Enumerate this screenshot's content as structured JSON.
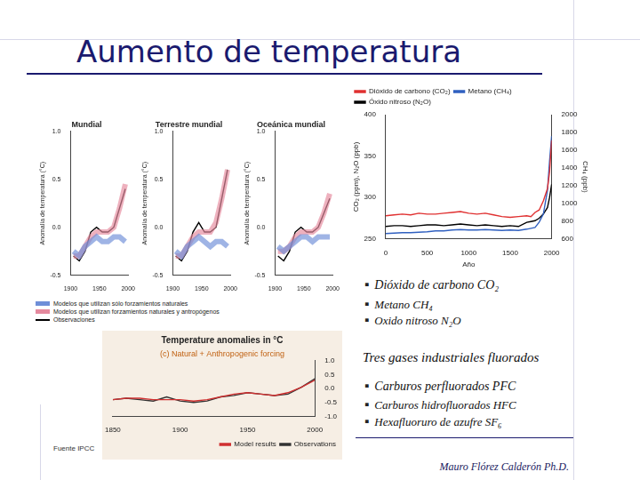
{
  "slide": {
    "title": "Aumento de temperatura",
    "gases": [
      "Dióxido de carbono CO₂",
      "Metano CH₄",
      "Oxido nitroso N₂O"
    ],
    "subheading": "Tres gases industriales fluorados",
    "fluorinated": [
      "Carburos perfluorados PFC",
      "Carburos hidrofluorados HFC",
      "Hexafluoruro de azufre SF₆"
    ],
    "source": "Fuente IPCC",
    "author": "Mauro Flórez Calderón Ph.D."
  },
  "chart_data": [
    {
      "type": "line",
      "x_label": "Año",
      "y_label": "CO₂ (ppm), N₂O (ppb)",
      "y2_label": "CH₄ (ppb)",
      "x": [
        0,
        100,
        200,
        300,
        400,
        500,
        600,
        700,
        800,
        900,
        1000,
        1100,
        1200,
        1300,
        1400,
        1500,
        1600,
        1700,
        1750,
        1800,
        1850,
        1900,
        1950,
        1975,
        2000
      ],
      "xlim": [
        0,
        2000
      ],
      "xticks": [
        0,
        500,
        1000,
        1500,
        2000
      ],
      "ylim": [
        250,
        400
      ],
      "yticks": [
        250,
        300,
        350,
        400
      ],
      "y2lim": [
        600,
        2000
      ],
      "y2ticks": [
        600,
        800,
        1000,
        1200,
        1400,
        1600,
        1800,
        2000
      ],
      "grid": false,
      "legend": "upper left",
      "series": [
        {
          "name": "Dióxido de carbono (CO₂)",
          "color": "#e03030",
          "values": [
            278,
            279,
            280,
            279,
            281,
            280,
            280,
            281,
            282,
            283,
            281,
            280,
            281,
            279,
            277,
            276,
            277,
            278,
            277,
            282,
            285,
            296,
            311,
            331,
            369
          ]
        },
        {
          "name": "Metano (CH₄)",
          "color": "#3060c0",
          "axis": "y2",
          "values": [
            660,
            665,
            670,
            670,
            675,
            680,
            690,
            690,
            700,
            705,
            700,
            700,
            705,
            700,
            695,
            700,
            695,
            710,
            720,
            730,
            790,
            880,
            1150,
            1480,
            1760
          ]
        },
        {
          "name": "Óxido nitroso (N₂O)",
          "color": "#000000",
          "values": [
            265,
            266,
            266,
            265,
            266,
            267,
            267,
            266,
            267,
            268,
            267,
            266,
            267,
            266,
            265,
            266,
            265,
            270,
            271,
            272,
            275,
            280,
            288,
            300,
            316
          ]
        }
      ]
    },
    {
      "type": "line",
      "title": "Mundial",
      "y_label": "Anomalía de temperatura (°C)",
      "x": [
        1905,
        1915,
        1925,
        1935,
        1945,
        1955,
        1965,
        1975,
        1985,
        1995
      ],
      "xlim": [
        1900,
        2000
      ],
      "xticks": [
        1900,
        1950,
        2000
      ],
      "ylim": [
        -0.5,
        1.0
      ],
      "yticks": [
        -0.5,
        {
          "value": 0,
          "label": "0.0"
        },
        0.5,
        {
          "value": 1,
          "label": "1.0"
        }
      ],
      "grid": false,
      "series": [
        {
          "name": "Modelos que utilizan sólo forzamientos naturales",
          "color": "#6f8fd8",
          "values": [
            -0.25,
            -0.3,
            -0.2,
            -0.15,
            -0.1,
            -0.15,
            -0.15,
            -0.1,
            -0.1,
            -0.15
          ]
        },
        {
          "name": "Modelos que utilizan forzamientos naturales y antropógenos",
          "color": "#e58a9e",
          "values": [
            -0.3,
            -0.3,
            -0.2,
            -0.1,
            -0.05,
            -0.05,
            -0.05,
            0.0,
            0.2,
            0.45
          ]
        },
        {
          "name": "Observaciones",
          "color": "#000000",
          "values": [
            -0.3,
            -0.35,
            -0.25,
            -0.05,
            0.0,
            -0.05,
            -0.05,
            0.0,
            0.2,
            0.4
          ]
        }
      ]
    },
    {
      "type": "line",
      "title": "Terrestre mundial",
      "y_label": "Anomalía de temperatura (°C)",
      "x": [
        1905,
        1915,
        1925,
        1935,
        1945,
        1955,
        1965,
        1975,
        1985,
        1995
      ],
      "xlim": [
        1900,
        2000
      ],
      "xticks": [
        1900,
        1950,
        2000
      ],
      "ylim": [
        -0.5,
        1.0
      ],
      "yticks": [
        -0.5,
        {
          "value": 0,
          "label": "0.0"
        },
        0.5,
        {
          "value": 1,
          "label": "1.0"
        }
      ],
      "grid": false,
      "series": [
        {
          "name": "Modelos que utilizan sólo forzamientos naturales",
          "color": "#6f8fd8",
          "values": [
            -0.25,
            -0.3,
            -0.2,
            -0.15,
            -0.1,
            -0.15,
            -0.2,
            -0.15,
            -0.15,
            -0.2
          ]
        },
        {
          "name": "Modelos que utilizan forzamientos naturales y antropógenos",
          "color": "#e58a9e",
          "values": [
            -0.3,
            -0.3,
            -0.2,
            -0.1,
            -0.05,
            -0.05,
            -0.05,
            0.05,
            0.3,
            0.6
          ]
        },
        {
          "name": "Observaciones",
          "color": "#000000",
          "values": [
            -0.3,
            -0.35,
            -0.25,
            -0.05,
            0.05,
            -0.05,
            -0.05,
            0.0,
            0.3,
            0.6
          ]
        }
      ]
    },
    {
      "type": "line",
      "title": "Oceánica mundial",
      "y_label": "Anomalía de temperatura (°C)",
      "x": [
        1905,
        1915,
        1925,
        1935,
        1945,
        1955,
        1965,
        1975,
        1985,
        1995
      ],
      "xlim": [
        1900,
        2000
      ],
      "xticks": [
        1900,
        1950,
        2000
      ],
      "ylim": [
        -0.5,
        1.0
      ],
      "yticks": [
        -0.5,
        {
          "value": 0,
          "label": "0.0"
        },
        0.5,
        {
          "value": 1,
          "label": "1.0"
        }
      ],
      "grid": false,
      "series": [
        {
          "name": "Modelos que utilizan sólo forzamientos naturales",
          "color": "#6f8fd8",
          "values": [
            -0.2,
            -0.25,
            -0.2,
            -0.15,
            -0.1,
            -0.1,
            -0.15,
            -0.1,
            -0.1,
            -0.1
          ]
        },
        {
          "name": "Modelos que utilizan forzamientos naturales y antropógenos",
          "color": "#e58a9e",
          "values": [
            -0.25,
            -0.25,
            -0.2,
            -0.1,
            -0.05,
            -0.05,
            -0.05,
            0.0,
            0.15,
            0.35
          ]
        },
        {
          "name": "Observaciones",
          "color": "#000000",
          "values": [
            -0.3,
            -0.35,
            -0.25,
            -0.05,
            0.0,
            -0.05,
            -0.05,
            0.0,
            0.15,
            0.3
          ]
        }
      ]
    },
    {
      "type": "line",
      "title": "Temperature anomalies in °C",
      "annotation": "(c) Natural + Anthropogenic forcing",
      "x": [
        1850,
        1860,
        1870,
        1880,
        1890,
        1900,
        1910,
        1920,
        1930,
        1940,
        1950,
        1960,
        1970,
        1980,
        1990,
        2000
      ],
      "xlim": [
        1850,
        2000
      ],
      "xticks": [
        1850,
        1900,
        1950,
        2000
      ],
      "ylim": [
        -1,
        1
      ],
      "yticks": [
        {
          "value": -1,
          "label": "-1.0"
        },
        -0.5,
        {
          "value": 0,
          "label": "0.0"
        },
        0.5,
        {
          "value": 1,
          "label": "1.0"
        }
      ],
      "grid": false,
      "legend": "lower right",
      "series": [
        {
          "name": "Model results",
          "color": "#d03030",
          "values": [
            -0.4,
            -0.35,
            -0.35,
            -0.4,
            -0.4,
            -0.4,
            -0.45,
            -0.4,
            -0.3,
            -0.2,
            -0.15,
            -0.2,
            -0.25,
            -0.15,
            0.05,
            0.3
          ]
        },
        {
          "name": "Observations",
          "color": "#333333",
          "values": [
            -0.4,
            -0.35,
            -0.4,
            -0.45,
            -0.3,
            -0.45,
            -0.5,
            -0.45,
            -0.3,
            -0.25,
            -0.15,
            -0.2,
            -0.25,
            -0.2,
            0.05,
            0.35
          ]
        }
      ]
    }
  ]
}
